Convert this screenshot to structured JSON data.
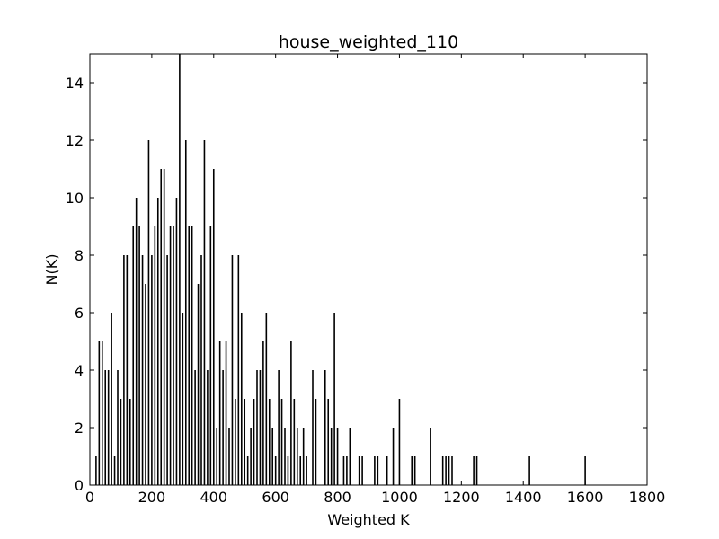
{
  "chart_data": {
    "type": "bar",
    "title": "house_weighted_110",
    "xlabel": "Weighted K",
    "ylabel": "N(K)",
    "xlim": [
      0,
      1800
    ],
    "ylim": [
      0,
      15
    ],
    "xticks": [
      0,
      200,
      400,
      600,
      800,
      1000,
      1200,
      1400,
      1600,
      1800
    ],
    "yticks": [
      0,
      2,
      4,
      6,
      8,
      10,
      12,
      14
    ],
    "grid": false,
    "legend": "none",
    "bar_color": "#000000",
    "series": [
      {
        "name": "N(K)",
        "points": [
          [
            20,
            1
          ],
          [
            30,
            5
          ],
          [
            40,
            5
          ],
          [
            50,
            4
          ],
          [
            60,
            4
          ],
          [
            70,
            6
          ],
          [
            80,
            1
          ],
          [
            90,
            4
          ],
          [
            100,
            3
          ],
          [
            110,
            8
          ],
          [
            120,
            8
          ],
          [
            130,
            3
          ],
          [
            140,
            9
          ],
          [
            150,
            10
          ],
          [
            160,
            9
          ],
          [
            170,
            8
          ],
          [
            180,
            7
          ],
          [
            190,
            12
          ],
          [
            200,
            8
          ],
          [
            210,
            9
          ],
          [
            220,
            10
          ],
          [
            230,
            11
          ],
          [
            240,
            11
          ],
          [
            250,
            8
          ],
          [
            260,
            9
          ],
          [
            270,
            9
          ],
          [
            280,
            10
          ],
          [
            290,
            15
          ],
          [
            300,
            6
          ],
          [
            310,
            12
          ],
          [
            320,
            9
          ],
          [
            330,
            9
          ],
          [
            340,
            4
          ],
          [
            350,
            7
          ],
          [
            360,
            8
          ],
          [
            370,
            12
          ],
          [
            380,
            4
          ],
          [
            390,
            9
          ],
          [
            400,
            11
          ],
          [
            410,
            2
          ],
          [
            420,
            5
          ],
          [
            430,
            4
          ],
          [
            440,
            5
          ],
          [
            450,
            2
          ],
          [
            460,
            8
          ],
          [
            470,
            3
          ],
          [
            480,
            8
          ],
          [
            490,
            6
          ],
          [
            500,
            3
          ],
          [
            510,
            1
          ],
          [
            520,
            2
          ],
          [
            530,
            3
          ],
          [
            540,
            4
          ],
          [
            550,
            4
          ],
          [
            560,
            5
          ],
          [
            570,
            6
          ],
          [
            580,
            3
          ],
          [
            590,
            2
          ],
          [
            600,
            1
          ],
          [
            610,
            4
          ],
          [
            620,
            3
          ],
          [
            630,
            2
          ],
          [
            640,
            1
          ],
          [
            650,
            5
          ],
          [
            660,
            3
          ],
          [
            670,
            2
          ],
          [
            680,
            1
          ],
          [
            690,
            2
          ],
          [
            700,
            1
          ],
          [
            720,
            4
          ],
          [
            730,
            3
          ],
          [
            760,
            4
          ],
          [
            770,
            3
          ],
          [
            780,
            2
          ],
          [
            790,
            6
          ],
          [
            800,
            2
          ],
          [
            820,
            1
          ],
          [
            830,
            1
          ],
          [
            840,
            2
          ],
          [
            870,
            1
          ],
          [
            880,
            1
          ],
          [
            920,
            1
          ],
          [
            930,
            1
          ],
          [
            960,
            1
          ],
          [
            980,
            2
          ],
          [
            1000,
            3
          ],
          [
            1040,
            1
          ],
          [
            1050,
            1
          ],
          [
            1100,
            2
          ],
          [
            1140,
            1
          ],
          [
            1150,
            1
          ],
          [
            1160,
            1
          ],
          [
            1170,
            1
          ],
          [
            1240,
            1
          ],
          [
            1250,
            1
          ],
          [
            1420,
            1
          ],
          [
            1600,
            1
          ]
        ]
      }
    ]
  }
}
